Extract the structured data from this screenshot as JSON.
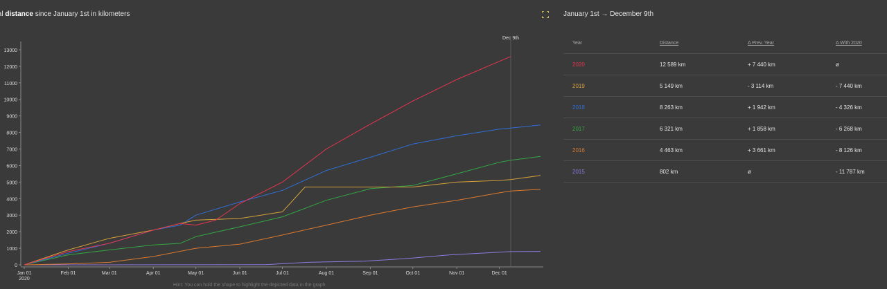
{
  "header": {
    "title_prefix": "tal ",
    "title_strong": "distance",
    "title_suffix": " since January 1st in kilometers",
    "range_label": "January 1st → December 9th"
  },
  "colors": {
    "2020": "#e8344f",
    "2019": "#d7a23a",
    "2018": "#2f6fd6",
    "2017": "#33a844",
    "2016": "#dd7a2f",
    "2015": "#8f7be0",
    "accent": "#e3d44a"
  },
  "hint": "Hint: You can hold the shape to highlight the depicted data in the graph",
  "table": {
    "headers": [
      "Year",
      "Distance",
      "Δ Prev. Year",
      "Δ With 2020"
    ],
    "rows": [
      {
        "year": "2020",
        "distance": "12 589 km",
        "prev": "+ 7 440 km",
        "with2020": "ø"
      },
      {
        "year": "2019",
        "distance": "5 149 km",
        "prev": "- 3 114 km",
        "with2020": "- 7 440 km"
      },
      {
        "year": "2018",
        "distance": "8 263 km",
        "prev": "+ 1 942 km",
        "with2020": "- 4 326 km"
      },
      {
        "year": "2017",
        "distance": "6 321 km",
        "prev": "+ 1 858 km",
        "with2020": "- 6 268 km"
      },
      {
        "year": "2016",
        "distance": "4 463 km",
        "prev": "+ 3 661 km",
        "with2020": "- 8 126 km"
      },
      {
        "year": "2015",
        "distance": "802 km",
        "prev": "ø",
        "with2020": "- 11 787 km"
      }
    ]
  },
  "chart_data": {
    "type": "line",
    "title": "",
    "xlabel": "",
    "ylabel": "",
    "ylim": [
      0,
      13500
    ],
    "xlim": [
      0,
      364
    ],
    "y_ticks": [
      0,
      1000,
      2000,
      3000,
      4000,
      5000,
      6000,
      7000,
      8000,
      9000,
      10000,
      11000,
      12000,
      13000
    ],
    "x_ticks": [
      {
        "day": 0,
        "label": "Jan 01",
        "sublabel": "2020"
      },
      {
        "day": 31,
        "label": "Feb 01"
      },
      {
        "day": 60,
        "label": "Mar 01"
      },
      {
        "day": 91,
        "label": "Apr 01"
      },
      {
        "day": 121,
        "label": "May 01"
      },
      {
        "day": 152,
        "label": "Jun 01"
      },
      {
        "day": 182,
        "label": "Jul 01"
      },
      {
        "day": 213,
        "label": "Aug 01"
      },
      {
        "day": 244,
        "label": "Sep 01"
      },
      {
        "day": 274,
        "label": "Oct 01"
      },
      {
        "day": 305,
        "label": "Nov 01"
      },
      {
        "day": 335,
        "label": "Dec 01"
      }
    ],
    "marker": {
      "day": 343,
      "label": "Dec 9th"
    },
    "series": [
      {
        "name": "2015",
        "x": [
          0,
          60,
          120,
          170,
          200,
          240,
          270,
          300,
          343,
          364
        ],
        "values": [
          0,
          0,
          5,
          10,
          150,
          220,
          380,
          600,
          800,
          810
        ]
      },
      {
        "name": "2016",
        "x": [
          0,
          30,
          60,
          91,
          121,
          152,
          182,
          213,
          244,
          274,
          305,
          335,
          343,
          364
        ],
        "values": [
          0,
          50,
          150,
          500,
          1000,
          1250,
          1800,
          2400,
          3000,
          3500,
          3900,
          4350,
          4463,
          4560
        ]
      },
      {
        "name": "2017",
        "x": [
          0,
          31,
          60,
          91,
          110,
          121,
          152,
          182,
          213,
          244,
          274,
          305,
          335,
          343,
          364
        ],
        "values": [
          0,
          600,
          900,
          1200,
          1300,
          1700,
          2300,
          2900,
          3900,
          4600,
          4800,
          5500,
          6200,
          6321,
          6550
        ]
      },
      {
        "name": "2018",
        "x": [
          0,
          31,
          60,
          91,
          110,
          121,
          152,
          182,
          213,
          244,
          274,
          305,
          335,
          343,
          364
        ],
        "values": [
          0,
          700,
          1300,
          2100,
          2400,
          3000,
          3800,
          4500,
          5700,
          6500,
          7300,
          7800,
          8200,
          8263,
          8450
        ]
      },
      {
        "name": "2019",
        "x": [
          0,
          31,
          60,
          91,
          110,
          121,
          152,
          182,
          198,
          213,
          244,
          274,
          305,
          335,
          343,
          364
        ],
        "values": [
          0,
          900,
          1600,
          2100,
          2500,
          2700,
          2800,
          3200,
          4700,
          4700,
          4700,
          4700,
          5000,
          5100,
          5149,
          5400
        ]
      },
      {
        "name": "2020",
        "x": [
          0,
          31,
          60,
          91,
          110,
          121,
          135,
          152,
          182,
          213,
          244,
          274,
          305,
          335,
          343
        ],
        "values": [
          0,
          800,
          1300,
          2100,
          2500,
          2400,
          2700,
          3700,
          5000,
          7000,
          8500,
          9900,
          11200,
          12300,
          12589
        ]
      }
    ]
  }
}
